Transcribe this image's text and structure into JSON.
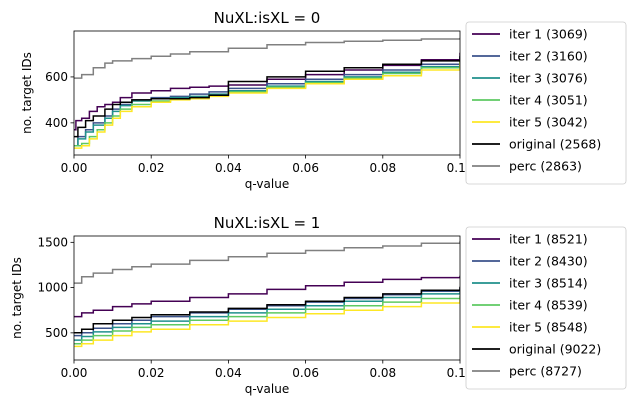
{
  "chart_data": [
    {
      "type": "line",
      "step": true,
      "title": "NuXL:isXL = 0",
      "xlabel": "q-value",
      "ylabel": "no. target IDs",
      "xlim": [
        0,
        0.1
      ],
      "ylim": [
        260,
        800
      ],
      "xticks": [
        "0.00",
        "0.02",
        "0.04",
        "0.06",
        "0.08",
        "0.10"
      ],
      "yticks": [
        "400",
        "600"
      ],
      "legend_position": "outside-right",
      "series": [
        {
          "name": "iter 1 (3069)",
          "color": "#440154",
          "x": [
            0,
            0.0005,
            0.002,
            0.004,
            0.006,
            0.008,
            0.01,
            0.012,
            0.015,
            0.02,
            0.025,
            0.03,
            0.035,
            0.04,
            0.05,
            0.06,
            0.07,
            0.08,
            0.09,
            0.1
          ],
          "y": [
            370,
            410,
            420,
            450,
            470,
            480,
            490,
            510,
            530,
            540,
            550,
            555,
            560,
            565,
            590,
            610,
            630,
            650,
            675,
            705
          ]
        },
        {
          "name": "iter 2 (3160)",
          "color": "#3b528b",
          "x": [
            0,
            0.001,
            0.003,
            0.005,
            0.008,
            0.01,
            0.012,
            0.015,
            0.02,
            0.025,
            0.03,
            0.035,
            0.04,
            0.05,
            0.06,
            0.07,
            0.08,
            0.09,
            0.1
          ],
          "y": [
            300,
            340,
            370,
            400,
            430,
            460,
            480,
            500,
            510,
            515,
            525,
            535,
            550,
            570,
            590,
            610,
            630,
            655,
            690
          ]
        },
        {
          "name": "iter 3 (3076)",
          "color": "#21918c",
          "x": [
            0,
            0.001,
            0.003,
            0.005,
            0.008,
            0.01,
            0.012,
            0.015,
            0.02,
            0.025,
            0.03,
            0.035,
            0.04,
            0.05,
            0.06,
            0.07,
            0.08,
            0.09,
            0.1
          ],
          "y": [
            300,
            330,
            360,
            390,
            420,
            450,
            475,
            495,
            505,
            510,
            515,
            525,
            540,
            560,
            580,
            600,
            620,
            645,
            675
          ]
        },
        {
          "name": "iter 4 (3051)",
          "color": "#5ec962",
          "x": [
            0,
            0.002,
            0.004,
            0.006,
            0.008,
            0.01,
            0.012,
            0.015,
            0.02,
            0.025,
            0.03,
            0.035,
            0.04,
            0.05,
            0.06,
            0.07,
            0.08,
            0.09,
            0.1
          ],
          "y": [
            300,
            310,
            340,
            370,
            400,
            430,
            460,
            480,
            495,
            505,
            510,
            520,
            535,
            555,
            575,
            595,
            615,
            640,
            670
          ]
        },
        {
          "name": "iter 5 (3042)",
          "color": "#fde725",
          "x": [
            0,
            0.002,
            0.004,
            0.006,
            0.008,
            0.01,
            0.012,
            0.015,
            0.02,
            0.025,
            0.03,
            0.035,
            0.04,
            0.05,
            0.06,
            0.07,
            0.08,
            0.09,
            0.1
          ],
          "y": [
            290,
            300,
            330,
            360,
            390,
            420,
            450,
            470,
            490,
            500,
            505,
            515,
            530,
            550,
            570,
            590,
            605,
            630,
            665
          ]
        },
        {
          "name": "original (2568)",
          "color": "#000000",
          "x": [
            0,
            0.001,
            0.003,
            0.005,
            0.008,
            0.01,
            0.012,
            0.015,
            0.02,
            0.025,
            0.03,
            0.035,
            0.04,
            0.05,
            0.06,
            0.07,
            0.08,
            0.09,
            0.1
          ],
          "y": [
            340,
            380,
            410,
            430,
            460,
            480,
            490,
            500,
            505,
            505,
            510,
            520,
            580,
            600,
            625,
            640,
            655,
            670,
            690
          ]
        },
        {
          "name": "perc (2863)",
          "color": "#808080",
          "x": [
            0,
            0.002,
            0.005,
            0.008,
            0.01,
            0.015,
            0.02,
            0.025,
            0.03,
            0.04,
            0.05,
            0.06,
            0.07,
            0.08,
            0.09,
            0.1
          ],
          "y": [
            595,
            610,
            640,
            660,
            670,
            680,
            690,
            700,
            710,
            725,
            740,
            750,
            755,
            760,
            765,
            770
          ]
        }
      ]
    },
    {
      "type": "line",
      "step": true,
      "title": "NuXL:isXL = 1",
      "xlabel": "q-value",
      "ylabel": "no. target IDs",
      "xlim": [
        0,
        0.1
      ],
      "ylim": [
        200,
        1570
      ],
      "xticks": [
        "0.00",
        "0.02",
        "0.04",
        "0.06",
        "0.08",
        "0.10"
      ],
      "yticks": [
        "500",
        "1000",
        "1500"
      ],
      "legend_position": "outside-right",
      "series": [
        {
          "name": "iter 1 (8521)",
          "color": "#440154",
          "x": [
            0,
            0.002,
            0.005,
            0.01,
            0.015,
            0.02,
            0.03,
            0.04,
            0.05,
            0.06,
            0.07,
            0.08,
            0.09,
            0.1
          ],
          "y": [
            680,
            720,
            750,
            790,
            820,
            850,
            890,
            930,
            980,
            1020,
            1060,
            1090,
            1110,
            1130
          ]
        },
        {
          "name": "iter 2 (8430)",
          "color": "#3b528b",
          "x": [
            0,
            0.002,
            0.005,
            0.01,
            0.015,
            0.02,
            0.03,
            0.04,
            0.05,
            0.06,
            0.07,
            0.08,
            0.09,
            0.1
          ],
          "y": [
            470,
            500,
            550,
            600,
            640,
            680,
            720,
            760,
            800,
            840,
            880,
            920,
            960,
            1000
          ]
        },
        {
          "name": "iter 3 (8514)",
          "color": "#21918c",
          "x": [
            0,
            0.002,
            0.005,
            0.01,
            0.015,
            0.02,
            0.03,
            0.04,
            0.05,
            0.06,
            0.07,
            0.08,
            0.09,
            0.1
          ],
          "y": [
            420,
            460,
            510,
            560,
            600,
            630,
            680,
            720,
            760,
            800,
            850,
            890,
            930,
            960
          ]
        },
        {
          "name": "iter 4 (8539)",
          "color": "#5ec962",
          "x": [
            0,
            0.002,
            0.005,
            0.01,
            0.015,
            0.02,
            0.03,
            0.04,
            0.05,
            0.06,
            0.07,
            0.08,
            0.09,
            0.1
          ],
          "y": [
            380,
            420,
            470,
            520,
            560,
            590,
            640,
            680,
            720,
            760,
            800,
            840,
            880,
            910
          ]
        },
        {
          "name": "iter 5 (8548)",
          "color": "#fde725",
          "x": [
            0,
            0.002,
            0.005,
            0.01,
            0.015,
            0.02,
            0.03,
            0.04,
            0.05,
            0.06,
            0.07,
            0.08,
            0.09,
            0.1
          ],
          "y": [
            350,
            380,
            420,
            470,
            510,
            540,
            590,
            630,
            670,
            710,
            750,
            790,
            830,
            870
          ]
        },
        {
          "name": "original (9022)",
          "color": "#000000",
          "x": [
            0,
            0.002,
            0.005,
            0.01,
            0.015,
            0.02,
            0.03,
            0.04,
            0.05,
            0.06,
            0.07,
            0.08,
            0.09,
            0.1
          ],
          "y": [
            500,
            540,
            600,
            640,
            670,
            700,
            730,
            770,
            810,
            850,
            890,
            930,
            970,
            1010
          ]
        },
        {
          "name": "perc (8727)",
          "color": "#808080",
          "x": [
            0,
            0.002,
            0.005,
            0.01,
            0.015,
            0.02,
            0.03,
            0.04,
            0.05,
            0.06,
            0.07,
            0.08,
            0.09,
            0.1
          ],
          "y": [
            1050,
            1120,
            1160,
            1200,
            1230,
            1260,
            1300,
            1340,
            1380,
            1410,
            1440,
            1460,
            1490,
            1510
          ]
        }
      ]
    }
  ]
}
